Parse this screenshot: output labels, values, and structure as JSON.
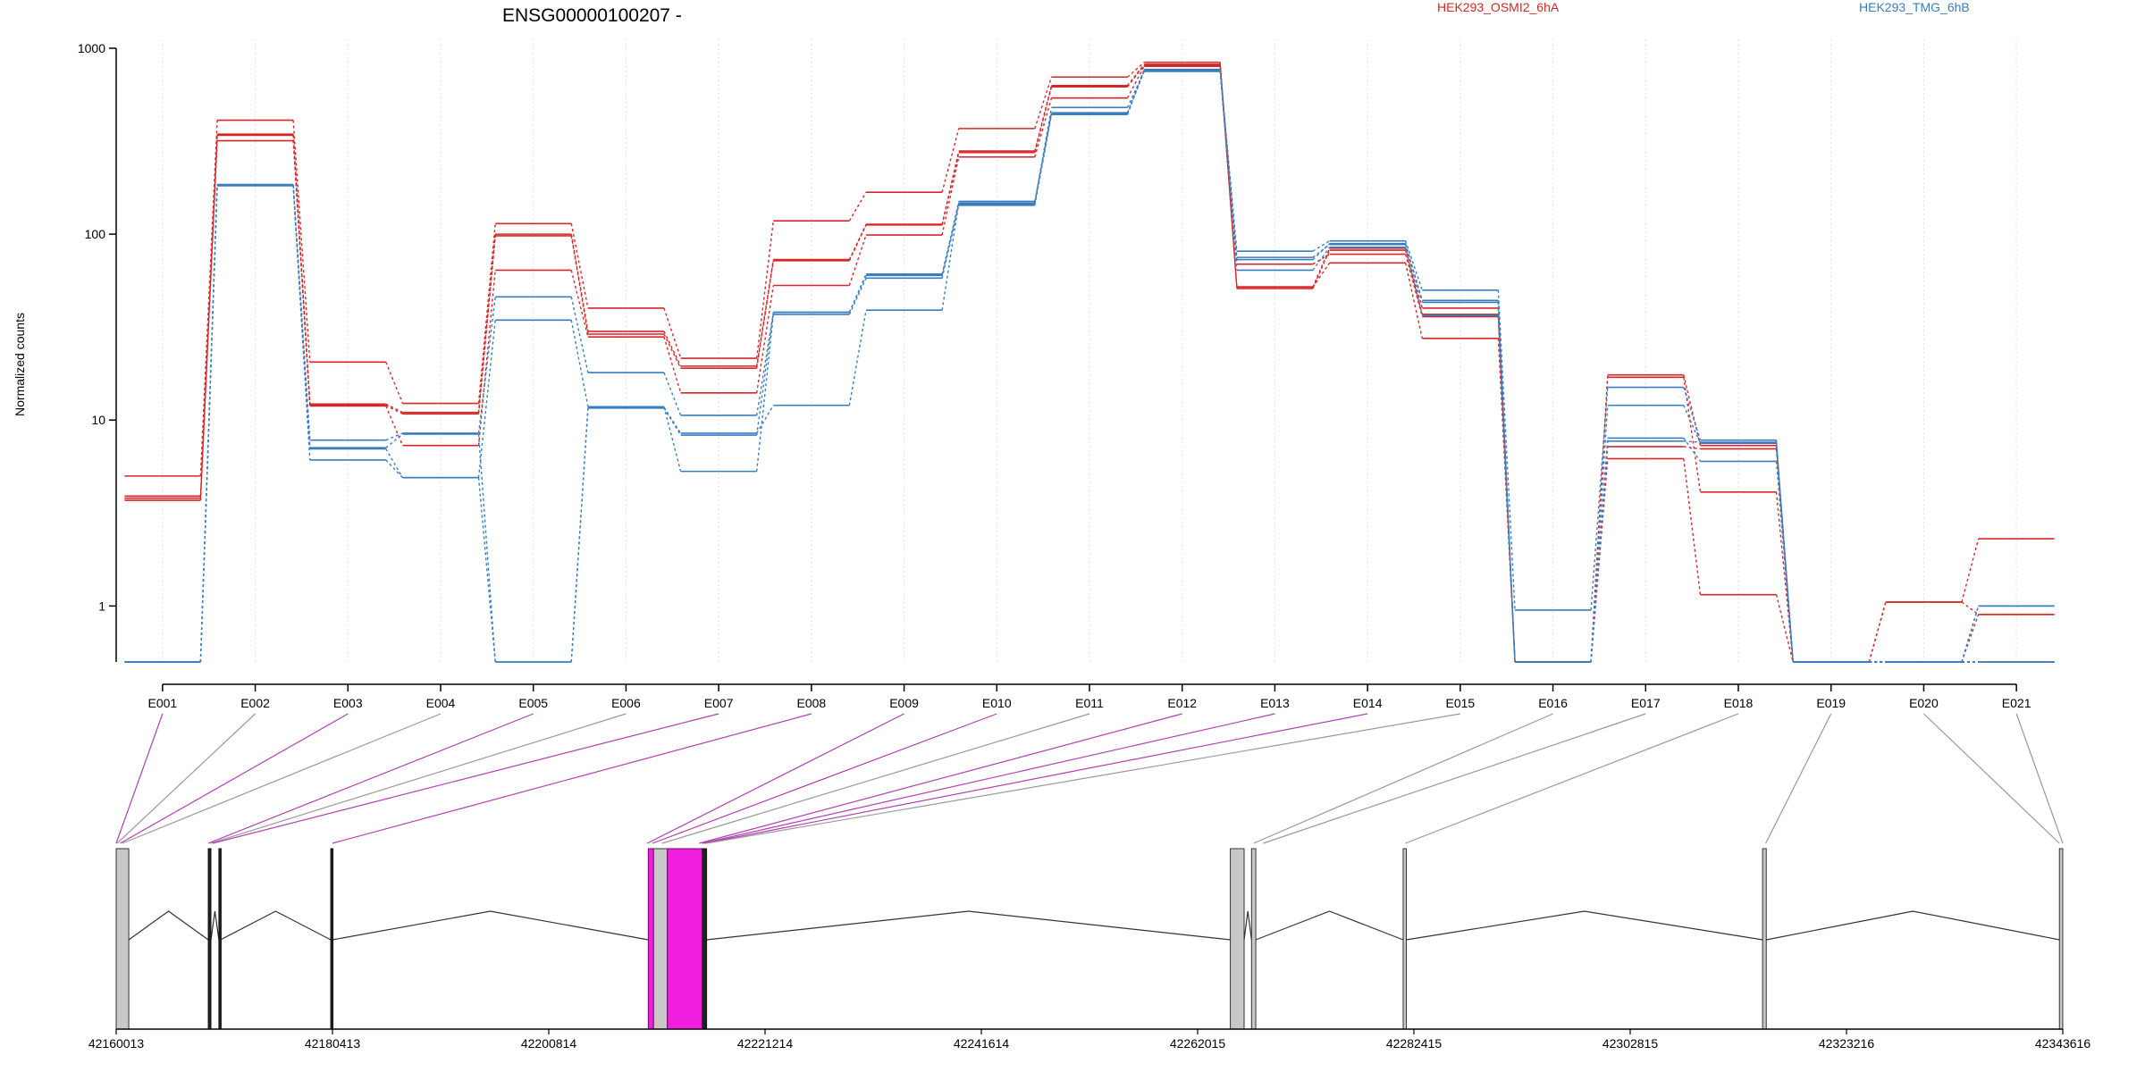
{
  "chart_data": {
    "type": "line",
    "title": "ENSG00000100207 -",
    "ylabel": "Normalized counts",
    "xlabel": "",
    "y_scale": "log",
    "ylim": [
      0.5,
      1000
    ],
    "y_ticks": [
      1,
      10,
      100,
      1000
    ],
    "y_tick_labels": [
      "1",
      "10",
      "100",
      "1000"
    ],
    "categories": [
      "E001",
      "E002",
      "E003",
      "E004",
      "E005",
      "E006",
      "E007",
      "E008",
      "E009",
      "E010",
      "E011",
      "E012",
      "E013",
      "E014",
      "E015",
      "E016",
      "E017",
      "E018",
      "E019",
      "E020",
      "E021"
    ],
    "legend": [
      {
        "name": "HEK293_OSMI2_6hA",
        "color": "#d62728"
      },
      {
        "name": "HEK293_TMG_6hB",
        "color": "#3a7dbd"
      }
    ],
    "series": [
      {
        "group": "red",
        "values": [
          5.0,
          410,
          20.5,
          12.3,
          114,
          40,
          21.5,
          118,
          168,
          370,
          700,
          840,
          51,
          82,
          37,
          0.5,
          17.5,
          7.3,
          0.5,
          1.05,
          2.3
        ]
      },
      {
        "group": "red",
        "values": [
          3.9,
          345,
          12.2,
          11.0,
          100,
          30,
          19.5,
          73,
          113,
          280,
          630,
          820,
          52,
          84,
          40,
          0.5,
          17,
          4.1,
          0.5,
          1.05,
          0.9
        ]
      },
      {
        "group": "red",
        "values": [
          3.7,
          318,
          11.9,
          7.3,
          64,
          28,
          14,
          53,
          99,
          260,
          540,
          800,
          69,
          78,
          36,
          0.5,
          6.2,
          1.15,
          0.5,
          0.5,
          0.9
        ]
      },
      {
        "group": "red",
        "values": [
          3.8,
          340,
          12.0,
          10.8,
          98,
          29,
          19,
          72,
          112,
          275,
          620,
          810,
          52,
          70,
          27.5,
          0.5,
          7.2,
          7.0,
          0.5,
          0.5,
          0.5
        ]
      },
      {
        "group": "blue",
        "values": [
          0.5,
          185,
          7.8,
          8.5,
          46,
          18,
          10.6,
          38,
          60,
          150,
          450,
          770,
          81,
          92,
          50,
          0.95,
          15,
          7.8,
          0.5,
          0.5,
          1.0
        ]
      },
      {
        "group": "blue",
        "values": [
          0.5,
          183,
          6.1,
          4.9,
          34.5,
          11.8,
          5.3,
          37,
          58,
          143,
          440,
          760,
          73,
          89,
          44,
          0.5,
          12,
          7.5,
          0.5,
          0.5,
          0.5
        ]
      },
      {
        "group": "blue",
        "values": [
          0.5,
          184,
          7.0,
          4.9,
          0.5,
          11.7,
          8.5,
          12,
          39,
          147,
          480,
          750,
          64,
          85,
          36.5,
          0.5,
          8,
          6.0,
          0.5,
          0.5,
          0.5
        ]
      },
      {
        "group": "blue",
        "values": [
          0.5,
          182,
          7.1,
          8.4,
          0.5,
          11.6,
          8.3,
          38,
          61,
          145,
          445,
          755,
          75,
          88,
          43,
          0.5,
          7.7,
          7.6,
          0.5,
          0.5,
          1.0
        ]
      }
    ],
    "exon_links": [
      {
        "exon": "E001",
        "pos": 42160013,
        "significant": true
      },
      {
        "exon": "E002",
        "pos": 42160100,
        "significant": false
      },
      {
        "exon": "E003",
        "pos": 42160400,
        "significant": true
      },
      {
        "exon": "E004",
        "pos": 42160600,
        "significant": false
      },
      {
        "exon": "E005",
        "pos": 42168700,
        "significant": true
      },
      {
        "exon": "E006",
        "pos": 42168900,
        "significant": false
      },
      {
        "exon": "E007",
        "pos": 42169100,
        "significant": true
      },
      {
        "exon": "E008",
        "pos": 42180413,
        "significant": true
      },
      {
        "exon": "E009",
        "pos": 42210100,
        "significant": true
      },
      {
        "exon": "E010",
        "pos": 42210600,
        "significant": true
      },
      {
        "exon": "E011",
        "pos": 42211500,
        "significant": false
      },
      {
        "exon": "E012",
        "pos": 42215000,
        "significant": true
      },
      {
        "exon": "E013",
        "pos": 42215300,
        "significant": true
      },
      {
        "exon": "E014",
        "pos": 42215500,
        "significant": true
      },
      {
        "exon": "E015",
        "pos": 42215700,
        "significant": false
      },
      {
        "exon": "E016",
        "pos": 42267300,
        "significant": false
      },
      {
        "exon": "E017",
        "pos": 42268200,
        "significant": false
      },
      {
        "exon": "E018",
        "pos": 42281600,
        "significant": false
      },
      {
        "exon": "E019",
        "pos": 42315600,
        "significant": false
      },
      {
        "exon": "E020",
        "pos": 42343300,
        "significant": false
      },
      {
        "exon": "E021",
        "pos": 42343616,
        "significant": false
      }
    ],
    "gene_model": {
      "exon_blocks": [
        {
          "start": 42160013,
          "end": 42161200,
          "kind": "gray"
        },
        {
          "start": 42168700,
          "end": 42168950,
          "kind": "dark"
        },
        {
          "start": 42169700,
          "end": 42169850,
          "kind": "dark"
        },
        {
          "start": 42180250,
          "end": 42180413,
          "kind": "dark"
        },
        {
          "start": 42210200,
          "end": 42210700,
          "kind": "magenta"
        },
        {
          "start": 42210700,
          "end": 42212000,
          "kind": "gray"
        },
        {
          "start": 42212000,
          "end": 42215300,
          "kind": "magenta"
        },
        {
          "start": 42215300,
          "end": 42215700,
          "kind": "dark"
        },
        {
          "start": 42265100,
          "end": 42266400,
          "kind": "gray"
        },
        {
          "start": 42267100,
          "end": 42267500,
          "kind": "gray"
        },
        {
          "start": 42281400,
          "end": 42281700,
          "kind": "gray"
        },
        {
          "start": 42315300,
          "end": 42315650,
          "kind": "gray"
        },
        {
          "start": 42343300,
          "end": 42343616,
          "kind": "gray"
        }
      ]
    },
    "x_axis_ticks": [
      42160013,
      42180413,
      42200814,
      42221214,
      42241614,
      42262015,
      42282415,
      42302815,
      42323216,
      42343616
    ],
    "x_axis_tick_labels": [
      "42160013",
      "42180413",
      "42200814",
      "42221214",
      "42241614",
      "42262015",
      "42282415",
      "42302815",
      "42323216",
      "42343616"
    ]
  }
}
